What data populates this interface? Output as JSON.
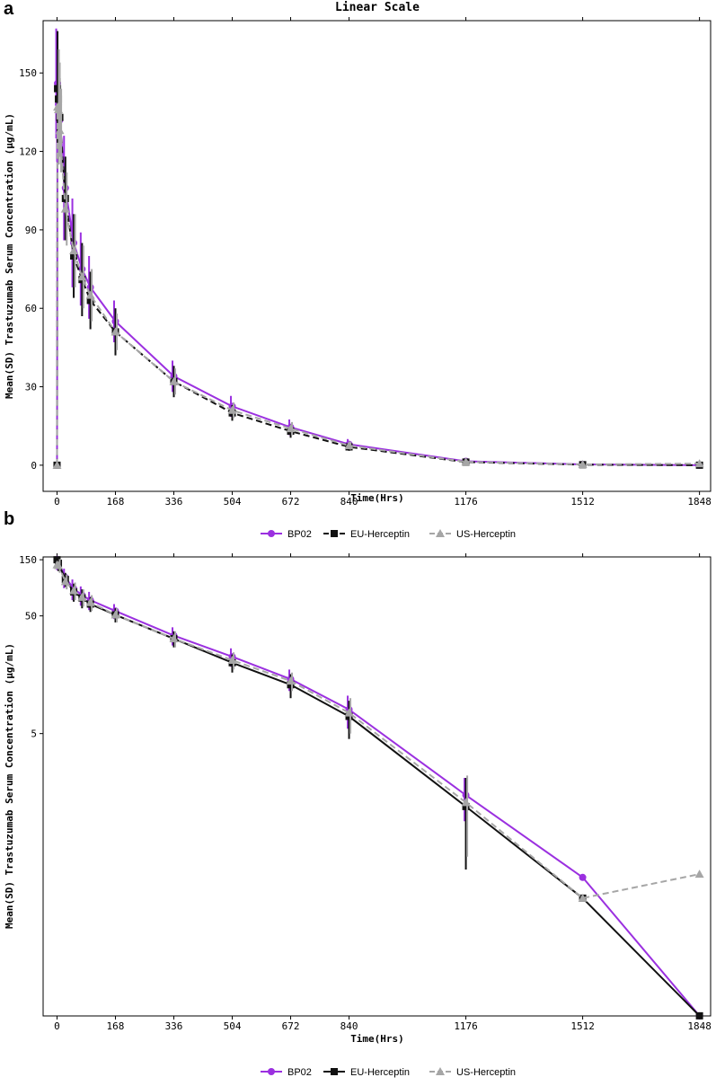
{
  "chart_data": [
    {
      "type": "line",
      "panel_label": "a",
      "title": "Linear Scale",
      "xlabel": "Time(Hrs)",
      "ylabel": "Mean(SD) Trastuzumab Serum Concentration (μg/mL)",
      "xlim": [
        -40,
        1880
      ],
      "ylim": [
        -10,
        170
      ],
      "x_ticks": [
        0,
        168,
        336,
        504,
        672,
        840,
        1176,
        1512,
        1848
      ],
      "y_ticks": [
        0,
        30,
        60,
        90,
        120,
        150
      ],
      "y_scale": "linear",
      "series": [
        {
          "name": "BP02",
          "color": "#9b30e0",
          "dash": "solid",
          "marker": "circle",
          "x": [
            0,
            1.5,
            4,
            8,
            24,
            48,
            72,
            96,
            168,
            336,
            504,
            672,
            840,
            1176,
            1512,
            1848
          ],
          "y": [
            0,
            146,
            138,
            132,
            106,
            85,
            75,
            68,
            55,
            34,
            22.5,
            14.5,
            8,
            1.5,
            0.3,
            0
          ],
          "sd": [
            0,
            21,
            22,
            17,
            20,
            17,
            14,
            12,
            8,
            6,
            4,
            3,
            2,
            0.5,
            0.1,
            0
          ]
        },
        {
          "name": "EU-Herceptin",
          "color": "#111111",
          "dash": "dashed",
          "marker": "square",
          "x": [
            0,
            1.5,
            4,
            8,
            24,
            48,
            72,
            96,
            168,
            336,
            504,
            672,
            840,
            1176,
            1512,
            1848
          ],
          "y": [
            0,
            144,
            140,
            133,
            102,
            80,
            71,
            63,
            51,
            32,
            20,
            13,
            7,
            1.2,
            0.2,
            0
          ],
          "sd": [
            0,
            22,
            16,
            15,
            16,
            16,
            14,
            11,
            9,
            6,
            3,
            2.5,
            1.5,
            0.4,
            0.1,
            0
          ]
        },
        {
          "name": "US-Herceptin",
          "color": "#a6a6a6",
          "dash": "dashed",
          "marker": "triangle",
          "x": [
            0,
            1.5,
            4,
            8,
            24,
            48,
            72,
            96,
            168,
            336,
            504,
            672,
            840,
            1176,
            1512,
            1848
          ],
          "y": [
            0,
            137,
            136,
            128,
            98,
            82,
            72,
            65,
            51,
            32,
            21,
            14,
            7.5,
            1.3,
            0.3,
            0.6
          ],
          "sd": [
            0,
            22,
            18,
            16,
            14,
            14,
            12,
            10,
            7,
            5,
            3,
            2.5,
            1.5,
            0.5,
            0.1,
            0.1
          ]
        }
      ],
      "legend": {
        "position": "bottom",
        "labels": [
          "BP02",
          "EU-Herceptin",
          "US-Herceptin"
        ]
      }
    },
    {
      "type": "line",
      "panel_label": "b",
      "title": "",
      "xlabel": "Time(Hrs)",
      "ylabel": "Mean(SD) Trastuzumab Serum Concentration (μg/mL)",
      "xlim": [
        -40,
        1880
      ],
      "ylim_log10": [
        -1.7,
        2.2
      ],
      "x_ticks": [
        0,
        168,
        336,
        504,
        672,
        840,
        1176,
        1512,
        1848
      ],
      "y_ticks": [
        5,
        50,
        150
      ],
      "y_scale": "log",
      "series": [
        {
          "name": "BP02",
          "color": "#9b30e0",
          "dash": "solid",
          "marker": "circle",
          "x": [
            0,
            4,
            24,
            48,
            72,
            96,
            168,
            336,
            504,
            672,
            840,
            1176,
            1512,
            1848
          ],
          "y": [
            150,
            142,
            106,
            85,
            75,
            68,
            55,
            34,
            22.5,
            14.5,
            8,
            1.5,
            0.3,
            0.02
          ],
          "sd_lo": [
            null,
            122,
            86,
            68,
            61,
            56,
            47,
            28,
            18.5,
            11.5,
            5.5,
            0.9,
            null,
            null
          ],
          "sd_hi": [
            null,
            162,
            126,
            102,
            89,
            80,
            63,
            40,
            26.5,
            17.5,
            10.5,
            2.1,
            null,
            null
          ]
        },
        {
          "name": "EU-Herceptin",
          "color": "#111111",
          "dash": "solid",
          "marker": "square",
          "x": [
            0,
            4,
            24,
            48,
            72,
            96,
            168,
            336,
            504,
            672,
            840,
            1176,
            1512,
            1848
          ],
          "y": [
            150,
            140,
            102,
            80,
            71,
            63,
            51,
            32,
            20,
            13,
            7,
            1.2,
            0.2,
            0.02
          ],
          "sd_lo": [
            null,
            120,
            88,
            66,
            58,
            54,
            44,
            27,
            16.5,
            10,
            4.5,
            0.35,
            null,
            null
          ],
          "sd_hi": [
            null,
            158,
            116,
            94,
            84,
            72,
            58,
            37,
            23.5,
            16,
            9.5,
            2.1,
            null,
            null
          ]
        },
        {
          "name": "US-Herceptin",
          "color": "#a6a6a6",
          "dash": "dashed",
          "marker": "triangle",
          "x": [
            0,
            4,
            24,
            48,
            72,
            96,
            168,
            336,
            504,
            672,
            840,
            1176,
            1512,
            1848
          ],
          "y": [
            136,
            134,
            98,
            82,
            72,
            65,
            51,
            32,
            21,
            14,
            7.5,
            1.3,
            0.2,
            0.32
          ],
          "sd_lo": [
            null,
            116,
            84,
            68,
            60,
            55,
            44,
            27,
            17.5,
            11.5,
            5,
            0.45,
            null,
            null
          ],
          "sd_hi": [
            null,
            152,
            112,
            96,
            84,
            75,
            58,
            37,
            24.5,
            16.5,
            10,
            2.2,
            null,
            null
          ]
        }
      ],
      "legend": {
        "position": "bottom",
        "labels": [
          "BP02",
          "EU-Herceptin",
          "US-Herceptin"
        ]
      }
    }
  ]
}
